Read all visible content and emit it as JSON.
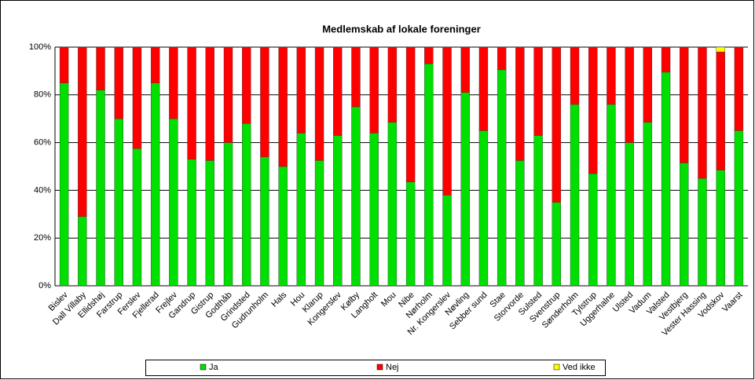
{
  "chart_data": {
    "type": "stacked_bar",
    "title": "Medlemskab af lokale foreninger",
    "categories": [
      "Bislev",
      "Dall Villaby",
      "Ellidshøj",
      "Farstrup",
      "Ferslev",
      "Fjellerad",
      "Frejlev",
      "Gandrup",
      "Gistrup",
      "Godthåb",
      "Grindsted",
      "Gudrunholm",
      "Hals",
      "Hou",
      "Klarup",
      "Kongerslev",
      "Kølby",
      "Langholt",
      "Mou",
      "Nibe",
      "Nørholm",
      "Nr. Kongerslev",
      "Nøvling",
      "Sebber sund",
      "Stae",
      "Storvorde",
      "Sulsted",
      "Svenstrup",
      "Sønderholm",
      "Tylstrup",
      "Uggerhalne",
      "Ulsted",
      "Vadum",
      "Valsted",
      "Vestbjerg",
      "Vester Hassing",
      "Vodskov",
      "Vaarst"
    ],
    "series": [
      {
        "name": "Ja",
        "color": "#00e000",
        "values": [
          85,
          29,
          82,
          70,
          57.5,
          85,
          70,
          53,
          52.5,
          60,
          68,
          54,
          50,
          64,
          52.5,
          63,
          75,
          64,
          68.5,
          43.5,
          93,
          38,
          81,
          65,
          90.5,
          52.5,
          63,
          35,
          76,
          47,
          76,
          60,
          68.5,
          89.5,
          51.5,
          45,
          48.5,
          65
        ]
      },
      {
        "name": "Nej",
        "color": "#ff0000",
        "values": [
          15,
          71,
          18,
          30,
          42.5,
          15,
          30,
          47,
          47.5,
          40,
          32,
          46,
          50,
          36,
          47.5,
          37,
          25,
          36,
          31.5,
          56.5,
          7,
          62,
          19,
          35,
          9.5,
          47.5,
          37,
          65,
          24,
          53,
          24,
          40,
          31.5,
          10.5,
          48.5,
          55,
          49.5,
          35
        ]
      },
      {
        "name": "Ved ikke",
        "color": "#ffff00",
        "values": [
          0,
          0,
          0,
          0,
          0,
          0,
          0,
          0,
          0,
          0,
          0,
          0,
          0,
          0,
          0,
          0,
          0,
          0,
          0,
          0,
          0,
          0,
          0,
          0,
          0,
          0,
          0,
          0,
          0,
          0,
          0,
          0,
          0,
          0,
          0,
          0,
          2,
          0
        ]
      }
    ],
    "ylim": [
      0,
      100
    ],
    "yticks": [
      {
        "value": 0,
        "label": "0%"
      },
      {
        "value": 20,
        "label": "20%"
      },
      {
        "value": 40,
        "label": "40%"
      },
      {
        "value": 60,
        "label": "60%"
      },
      {
        "value": 80,
        "label": "80%"
      },
      {
        "value": 100,
        "label": "100%"
      }
    ],
    "grid": true,
    "legend": "bottom"
  }
}
